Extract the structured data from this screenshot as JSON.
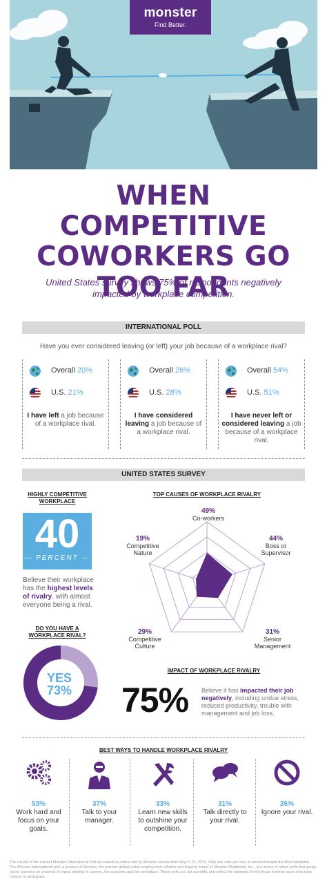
{
  "logo": {
    "name": "monster",
    "tagline": "Find Better."
  },
  "title": {
    "line1": "WHEN COMPETITIVE",
    "line2": "COWORKERS GO",
    "line3": "TOO FAR"
  },
  "subtitle": "United States survey shows 75% of respondents negatively impacted by workplace competition.",
  "international_poll": {
    "header": "INTERNATIONAL POLL",
    "question": "Have you ever considered leaving (or left) your job because of a workplace rival?",
    "columns": [
      {
        "overall_label": "Overall",
        "overall_pct": "20%",
        "us_label": "U.S.",
        "us_pct": "21%",
        "desc_strong": "I have left",
        "desc_rest": "a job because of a workplace rival."
      },
      {
        "overall_label": "Overall",
        "overall_pct": "26%",
        "us_label": "U.S.",
        "us_pct": "28%",
        "desc_strong": "I have considered leaving",
        "desc_rest": "a job because of a workplace rival."
      },
      {
        "overall_label": "Overall",
        "overall_pct": "54%",
        "us_label": "U.S.",
        "us_pct": "51%",
        "desc_strong": "I have never left or considered leaving",
        "desc_rest": "a job because of a workplace rival."
      }
    ]
  },
  "us_survey": {
    "header": "UNITED STATES SURVEY",
    "highly_competitive": {
      "heading": "HIGHLY COMPETITIVE WORKPLACE",
      "number": "40",
      "unit": "PERCENT",
      "desc_a": "Believe their workplace has the",
      "desc_strong": "highest levels of rivalry",
      "desc_b": ", with almost everyone being a rival."
    },
    "rival": {
      "heading": "DO YOU HAVE A WORKPLACE RIVAL?",
      "answer": "YES",
      "pct": "73%",
      "value": 73
    },
    "causes": {
      "heading": "TOP CAUSES OF WORKPLACE RIVALRY",
      "items": [
        {
          "pct": "49%",
          "label": "Co-workers",
          "value": 49
        },
        {
          "pct": "44%",
          "label": "Boss or Supervisor",
          "value": 44
        },
        {
          "pct": "31%",
          "label": "Senior Management",
          "value": 31
        },
        {
          "pct": "29%",
          "label": "Competitive Culture",
          "value": 29
        },
        {
          "pct": "19%",
          "label": "Competitive Nature",
          "value": 19
        }
      ]
    },
    "impact": {
      "heading": "IMPACT OF WORKPLACE RIVALRY",
      "pct": "75%",
      "desc_a": "Believe it has",
      "desc_strong": "impacted their job negatively",
      "desc_b": ", including undue stress, reduced productivity, trouble with management and job loss."
    }
  },
  "ways": {
    "heading": "BEST WAYS TO HANDLE WORKPLACE RIVALRY",
    "items": [
      {
        "icon": "gears-icon",
        "pct": "53%",
        "label": "Work hard and focus on your goals."
      },
      {
        "icon": "manager-icon",
        "pct": "37%",
        "label": "Talk to your manager."
      },
      {
        "icon": "tools-icon",
        "pct": "33%",
        "label": "Learn new skills to outshine your competition."
      },
      {
        "icon": "speech-bubbles-icon",
        "pct": "31%",
        "label": "Talk directly to your rival."
      },
      {
        "icon": "no-symbol-icon",
        "pct": "26%",
        "label": "Ignore your rival."
      }
    ]
  },
  "footer": "The results of the current Monster International Poll are based on votes cast by Monster visitors from May 5-19, 2014. Only one vote per user is counted toward the final tabulation. The Monster International poll, a product of Monster, the premier global online employment solution and flagship brand of Monster Worldwide, Inc., is a series of online polls that gauge users' opinions on a variety of topics relating to careers, the economy and the workplace. These polls are not scientific and reflect the opinions of only those Internet users who have chosen to participate.",
  "colors": {
    "purple": "#5b2c83",
    "blue": "#5aaee0",
    "sky": "#a8d4dd"
  }
}
